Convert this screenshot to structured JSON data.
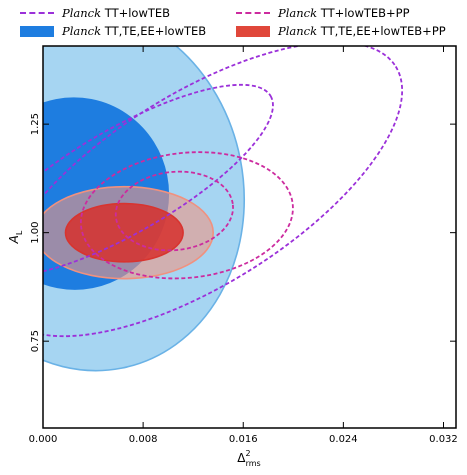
{
  "chart_data": {
    "type": "contour",
    "xlabel_base": "Δ",
    "xlabel_sup": "2",
    "xlabel_sub": "rms",
    "ylabel_base": "A",
    "ylabel_sub": "L",
    "xlim": [
      0.0,
      0.033
    ],
    "ylim": [
      0.55,
      1.43
    ],
    "xticks": [
      "0.000",
      "0.008",
      "0.016",
      "0.024",
      "0.032"
    ],
    "xtick_values": [
      0.0,
      0.008,
      0.016,
      0.024,
      0.032
    ],
    "yticks": [
      "0.75",
      "1.00",
      "1.25"
    ],
    "ytick_values": [
      0.75,
      1.0,
      1.25
    ],
    "legend": [
      {
        "prefix": "Planck",
        "label": " TT+lowTEB",
        "color": "#9b30d9",
        "style": "dashed"
      },
      {
        "prefix": "Planck",
        "label": " TT+lowTEB+PP",
        "color": "#cc2b9f",
        "style": "dashed"
      },
      {
        "prefix": "Planck",
        "label": " TT,TE,EE+lowTEB",
        "color": "#1e7de0",
        "style": "filled"
      },
      {
        "prefix": "Planck",
        "label": " TT,TE,EE+lowTEB+PP",
        "color": "#e0473a",
        "style": "filled"
      }
    ],
    "series": [
      {
        "name": "Planck TT,TE,EE+lowTEB",
        "level": "95%",
        "fill": "#a6d5f2",
        "edge": "#6ab2e6",
        "style": "filled",
        "cx": 0.0035,
        "cy": 1.1,
        "rx": 0.0125,
        "ry": 0.42,
        "angle": -11
      },
      {
        "name": "Planck TT,TE,EE+lowTEB",
        "level": "68%",
        "fill": "#1e7de0",
        "edge": "#1e7de0",
        "style": "filled",
        "cx": 0.0025,
        "cy": 1.09,
        "rx": 0.0075,
        "ry": 0.22,
        "angle": -11
      },
      {
        "name": "Planck TT,TE,EE+lowTEB+PP",
        "level": "95%",
        "fill": "rgba(238,150,132,0.6)",
        "edge": "#f0917f",
        "style": "filled",
        "cx": 0.0065,
        "cy": 1.0,
        "rx": 0.0071,
        "ry": 0.106,
        "angle": 0
      },
      {
        "name": "Planck TT,TE,EE+lowTEB+PP",
        "level": "68%",
        "fill": "rgba(215,48,45,0.85)",
        "edge": "#d8342f",
        "style": "filled",
        "cx": 0.0065,
        "cy": 1.0,
        "rx": 0.0047,
        "ry": 0.067,
        "angle": 0
      },
      {
        "name": "Planck TT+lowTEB",
        "level": "95%",
        "fill": "none",
        "edge": "#9b30d9",
        "style": "dashed",
        "cx": 0.0125,
        "cy": 1.1,
        "rx": 0.0185,
        "ry": 0.22,
        "angle": -32
      },
      {
        "name": "Planck TT+lowTEB",
        "level": "68%",
        "fill": "none",
        "edge": "#9b30d9",
        "style": "dashed",
        "cx": 0.0065,
        "cy": 1.12,
        "rx": 0.0135,
        "ry": 0.12,
        "angle": -30
      },
      {
        "name": "Planck TT+lowTEB+PP",
        "level": "95%",
        "fill": "none",
        "edge": "#cc2b9f",
        "style": "dashed",
        "cx": 0.0115,
        "cy": 1.04,
        "rx": 0.0085,
        "ry": 0.144,
        "angle": -6
      },
      {
        "name": "Planck TT+lowTEB+PP",
        "level": "68%",
        "fill": "none",
        "edge": "#cc2b9f",
        "style": "dashed",
        "cx": 0.0105,
        "cy": 1.05,
        "rx": 0.0047,
        "ry": 0.09,
        "angle": -6
      }
    ]
  }
}
